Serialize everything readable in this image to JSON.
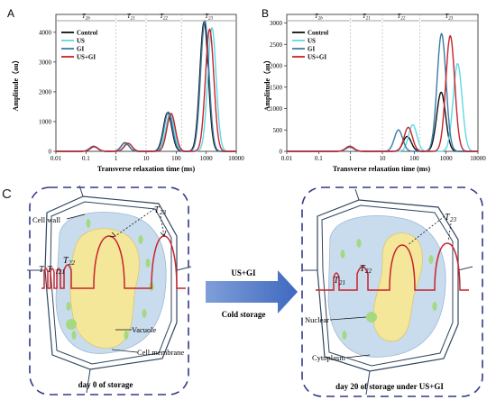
{
  "charts": {
    "A": {
      "panel_label": "A",
      "xlabel": "Transverse relaxation time (ms)",
      "ylabel": "Amplitude（au）",
      "xticks": [
        "0.01",
        "0.1",
        "1",
        "10",
        "100",
        "1000",
        "10000"
      ],
      "yticks": [
        "0",
        "1000",
        "2000",
        "3000",
        "4000"
      ],
      "regions": [
        "T2b",
        "T21",
        "T22",
        "T23"
      ]
    },
    "B": {
      "panel_label": "B",
      "xlabel": "Transverse relaxation time (ms)",
      "ylabel": "Amplitude（au）",
      "xticks": [
        "0.01",
        "0.1",
        "1",
        "10",
        "100",
        "1000",
        "10000"
      ],
      "yticks": [
        "0",
        "500",
        "1000",
        "1500",
        "2000",
        "2500",
        "3000"
      ],
      "regions": [
        "T2b",
        "T21",
        "T22",
        "T23"
      ]
    }
  },
  "legend": [
    "Control",
    "US",
    "GI",
    "US+GI"
  ],
  "colors": {
    "Control": "#111111",
    "US": "#5fd8e6",
    "GI": "#3a7ca5",
    "US+GI": "#c8222c"
  },
  "chart_data": [
    {
      "type": "line",
      "title": "",
      "xlabel": "Transverse relaxation time (ms)",
      "ylabel": "Amplitude（au）",
      "xscale": "log",
      "xlim": [
        0.01,
        10000
      ],
      "ylim": [
        0,
        4600
      ],
      "legend_position": "top-left",
      "series": [
        {
          "name": "Control",
          "peaks": [
            {
              "t_ms": 0.18,
              "amp": 170
            },
            {
              "t_ms": 2.0,
              "amp": 290
            },
            {
              "t_ms": 52,
              "amp": 1300
            },
            {
              "t_ms": 850,
              "amp": 4350
            }
          ]
        },
        {
          "name": "US",
          "peaks": [
            {
              "t_ms": 0.18,
              "amp": 150
            },
            {
              "t_ms": 2.6,
              "amp": 260
            },
            {
              "t_ms": 62,
              "amp": 1250
            },
            {
              "t_ms": 1550,
              "amp": 4150
            }
          ]
        },
        {
          "name": "GI",
          "peaks": [
            {
              "t_ms": 0.18,
              "amp": 165
            },
            {
              "t_ms": 2.0,
              "amp": 280
            },
            {
              "t_ms": 55,
              "amp": 1320
            },
            {
              "t_ms": 900,
              "amp": 4380
            }
          ]
        },
        {
          "name": "US+GI",
          "peaks": [
            {
              "t_ms": 0.19,
              "amp": 155
            },
            {
              "t_ms": 2.5,
              "amp": 270
            },
            {
              "t_ms": 68,
              "amp": 1270
            },
            {
              "t_ms": 1300,
              "amp": 4100
            }
          ]
        }
      ]
    },
    {
      "type": "line",
      "title": "",
      "xlabel": "Transverse relaxation time (ms)",
      "ylabel": "Amplitude（au）",
      "xscale": "log",
      "xlim": [
        0.01,
        10000
      ],
      "ylim": [
        0,
        3200
      ],
      "legend_position": "top-left",
      "series": [
        {
          "name": "Control",
          "peaks": [
            {
              "t_ms": 0.95,
              "amp": 110
            },
            {
              "t_ms": 60,
              "amp": 350
            },
            {
              "t_ms": 700,
              "amp": 1380
            }
          ]
        },
        {
          "name": "US",
          "peaks": [
            {
              "t_ms": 0.95,
              "amp": 90
            },
            {
              "t_ms": 90,
              "amp": 620
            },
            {
              "t_ms": 2300,
              "amp": 2050
            }
          ]
        },
        {
          "name": "GI",
          "peaks": [
            {
              "t_ms": 0.95,
              "amp": 100
            },
            {
              "t_ms": 32,
              "amp": 500
            },
            {
              "t_ms": 720,
              "amp": 2750
            }
          ]
        },
        {
          "name": "US+GI",
          "peaks": [
            {
              "t_ms": 0.95,
              "amp": 120
            },
            {
              "t_ms": 65,
              "amp": 560
            },
            {
              "t_ms": 1350,
              "amp": 2700
            }
          ]
        }
      ]
    }
  ],
  "diagram": {
    "panel_label": "C",
    "left_cell": {
      "cell_wall": "Cell wall",
      "vacuole": "Vacuole",
      "cell_membrane": "Cell membrane",
      "caption": "day  0  of storage"
    },
    "right_cell": {
      "nuclear": "Nuclear",
      "cytoplasm": "Cytoplasm",
      "caption": "day 20  of storage under US+GI"
    },
    "arrow_top": "US+GI",
    "arrow_bottom": "Cold storage",
    "peak_labels": [
      "T21",
      "T22",
      "T23"
    ]
  }
}
